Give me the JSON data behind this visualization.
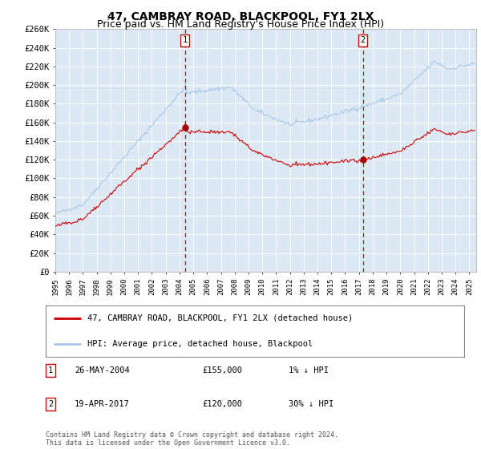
{
  "title": "47, CAMBRAY ROAD, BLACKPOOL, FY1 2LX",
  "subtitle": "Price paid vs. HM Land Registry's House Price Index (HPI)",
  "ylim": [
    0,
    260000
  ],
  "xlim_start": 1995.0,
  "xlim_end": 2025.5,
  "sale1_x": 2004.39,
  "sale1_y": 155000,
  "sale2_x": 2017.29,
  "sale2_y": 120000,
  "plot_bg_color": "#dce9f5",
  "grid_color": "#ffffff",
  "line_color_property": "#cc0000",
  "line_color_hpi": "#a8c8e8",
  "legend_label_property": "47, CAMBRAY ROAD, BLACKPOOL, FY1 2LX (detached house)",
  "legend_label_hpi": "HPI: Average price, detached house, Blackpool",
  "table_row1": [
    "1",
    "26-MAY-2004",
    "£155,000",
    "1% ↓ HPI"
  ],
  "table_row2": [
    "2",
    "19-APR-2017",
    "£120,000",
    "30% ↓ HPI"
  ],
  "footer": "Contains HM Land Registry data © Crown copyright and database right 2024.\nThis data is licensed under the Open Government Licence v3.0.",
  "title_fontsize": 10,
  "subtitle_fontsize": 9
}
